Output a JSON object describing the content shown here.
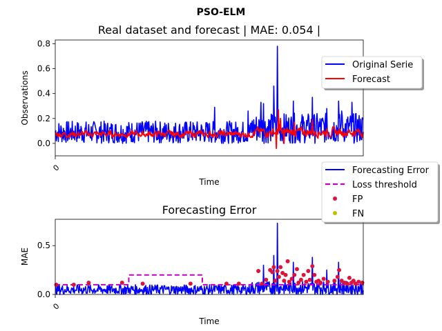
{
  "figure": {
    "suptitle": "PSO-ELM"
  },
  "chart_data": [
    {
      "type": "line",
      "title": "Real dataset and forecast | MAE: 0.054 |",
      "xlabel": "Time",
      "ylabel": "Observations",
      "x_tick_labels": [
        "0"
      ],
      "y_ticks": [
        0.0,
        0.2,
        0.4,
        0.6,
        0.8
      ],
      "ylim": [
        -0.1,
        0.83
      ],
      "x_points": 600,
      "legend": {
        "placement": "right-outside-top",
        "entries": [
          "Original Serie",
          "Forecast"
        ]
      },
      "series": [
        {
          "name": "Original Serie",
          "color": "#0000ff",
          "baseline_range": [
            0.0,
            0.18
          ],
          "values_note_skipped": true,
          "peaks": [
            [
              432,
              0.78
            ],
            [
              425,
              0.46
            ],
            [
              405,
              0.32
            ],
            [
              463,
              0.34
            ],
            [
              500,
              0.37
            ],
            [
              551,
              0.34
            ],
            [
              577,
              0.33
            ],
            [
              528,
              0.28
            ],
            [
              557,
              0.26
            ],
            [
              400,
              0.33
            ],
            [
              375,
              0.26
            ],
            [
              310,
              0.29
            ],
            [
              180,
              0.17
            ]
          ]
        },
        {
          "name": "Forecast",
          "color": "#ff0000",
          "baseline_range": [
            0.03,
            0.12
          ],
          "peaks": [
            [
              434,
              0.27
            ],
            [
              438,
              0.2
            ],
            [
              465,
              0.17
            ],
            [
              500,
              0.19
            ]
          ],
          "troughs": [
            [
              430,
              -0.04
            ],
            [
              445,
              0.0
            ]
          ]
        }
      ]
    },
    {
      "type": "line",
      "title": "Forecasting Error",
      "xlabel": "Time",
      "ylabel": "MAE",
      "x_tick_labels": [
        "0"
      ],
      "y_ticks": [
        0.0,
        0.5
      ],
      "ylim": [
        0.0,
        0.77
      ],
      "x_points": 600,
      "legend": {
        "placement": "right-outside-top",
        "entries": [
          "Forecasting Error",
          "Loss threshold",
          "FP",
          "FN"
        ]
      },
      "series": [
        {
          "name": "Forecasting Error",
          "color": "#0000ff",
          "baseline_range": [
            0.0,
            0.1
          ],
          "peaks": [
            [
              432,
              0.73
            ],
            [
              425,
              0.4
            ],
            [
              463,
              0.33
            ],
            [
              500,
              0.38
            ],
            [
              551,
              0.33
            ],
            [
              405,
              0.3
            ],
            [
              528,
              0.25
            ]
          ]
        },
        {
          "name": "Loss threshold",
          "color": "#bf00bf",
          "style": "dashed",
          "steps": [
            [
              0,
              0.1
            ],
            [
              143,
              0.2
            ],
            [
              286,
              0.1
            ],
            [
              600,
              0.1
            ]
          ]
        },
        {
          "name": "FP",
          "color": "#dc143c",
          "style": "markers",
          "points": [
            [
              2,
              0.1
            ],
            [
              36,
              0.1
            ],
            [
              65,
              0.12
            ],
            [
              130,
              0.12
            ],
            [
              170,
              0.11
            ],
            [
              263,
              0.11
            ],
            [
              333,
              0.11
            ],
            [
              357,
              0.11
            ],
            [
              395,
              0.24
            ],
            [
              402,
              0.11
            ],
            [
              410,
              0.15
            ],
            [
              418,
              0.25
            ],
            [
              422,
              0.23
            ],
            [
              425,
              0.28
            ],
            [
              428,
              0.14
            ],
            [
              432,
              0.24
            ],
            [
              435,
              0.18
            ],
            [
              438,
              0.28
            ],
            [
              442,
              0.22
            ],
            [
              445,
              0.14
            ],
            [
              448,
              0.2
            ],
            [
              452,
              0.34
            ],
            [
              455,
              0.13
            ],
            [
              460,
              0.16
            ],
            [
              465,
              0.2
            ],
            [
              470,
              0.26
            ],
            [
              473,
              0.12
            ],
            [
              478,
              0.15
            ],
            [
              483,
              0.2
            ],
            [
              488,
              0.13
            ],
            [
              492,
              0.24
            ],
            [
              495,
              0.15
            ],
            [
              500,
              0.29
            ],
            [
              504,
              0.2
            ],
            [
              508,
              0.13
            ],
            [
              512,
              0.14
            ],
            [
              516,
              0.12
            ],
            [
              522,
              0.16
            ],
            [
              530,
              0.13
            ],
            [
              543,
              0.14
            ],
            [
              549,
              0.18
            ],
            [
              552,
              0.25
            ],
            [
              557,
              0.14
            ],
            [
              563,
              0.12
            ],
            [
              568,
              0.11
            ],
            [
              572,
              0.17
            ],
            [
              576,
              0.12
            ],
            [
              580,
              0.14
            ],
            [
              584,
              0.11
            ],
            [
              590,
              0.13
            ],
            [
              597,
              0.12
            ]
          ]
        },
        {
          "name": "FN",
          "color": "#bfbf00",
          "style": "markers",
          "points": []
        }
      ]
    }
  ]
}
